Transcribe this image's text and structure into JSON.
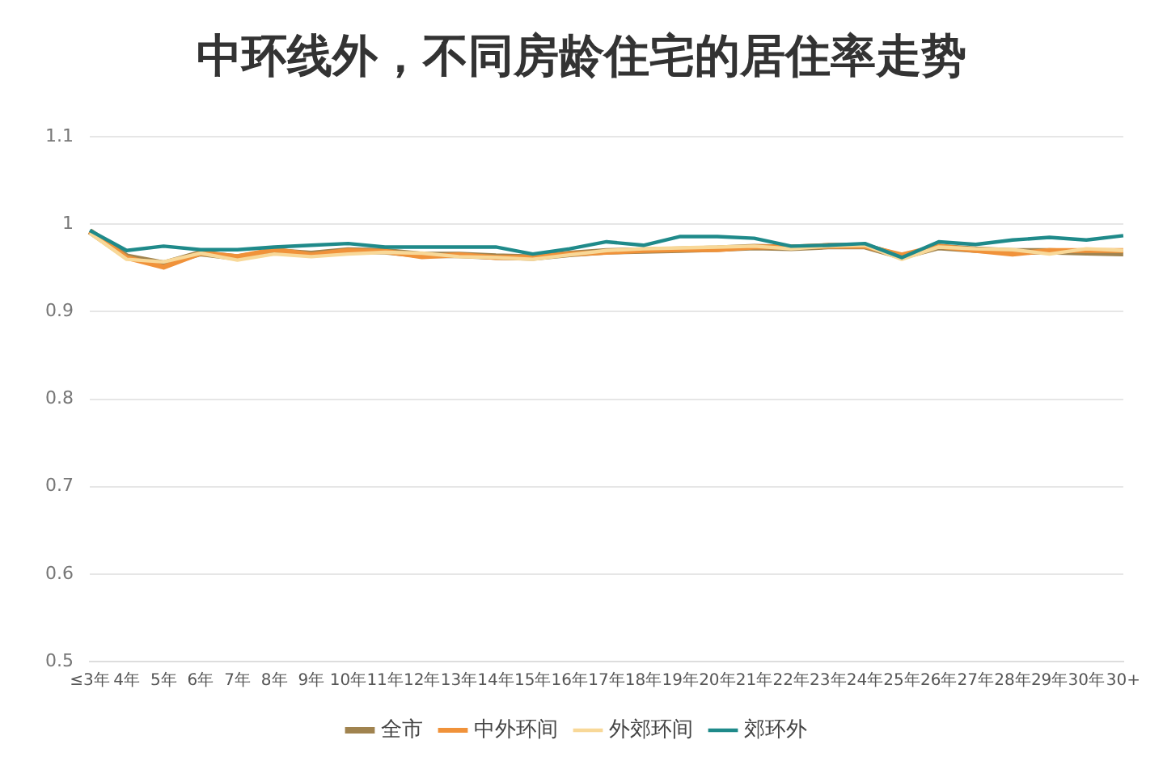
{
  "chart_data": {
    "type": "line",
    "title": "中环线外，不同房龄住宅的居住率走势",
    "categories": [
      "≤3年",
      "4年",
      "5年",
      "6年",
      "7年",
      "8年",
      "9年",
      "10年",
      "11年",
      "12年",
      "13年",
      "14年",
      "15年",
      "16年",
      "17年",
      "18年",
      "19年",
      "20年",
      "21年",
      "22年",
      "23年",
      "24年",
      "25年",
      "26年",
      "27年",
      "28年",
      "29年",
      "30年",
      "30+"
    ],
    "series": [
      {
        "name": "全市",
        "color": "#a0834f",
        "values": [
          0.992,
          0.963,
          0.955,
          0.967,
          0.962,
          0.969,
          0.966,
          0.97,
          0.969,
          0.965,
          0.965,
          0.963,
          0.962,
          0.966,
          0.969,
          0.97,
          0.971,
          0.972,
          0.974,
          0.973,
          0.975,
          0.975,
          0.963,
          0.974,
          0.971,
          0.969,
          0.969,
          0.968,
          0.967
        ]
      },
      {
        "name": "中外环间",
        "color": "#f0923a",
        "values": [
          0.992,
          0.962,
          0.951,
          0.967,
          0.963,
          0.971,
          0.965,
          0.97,
          0.969,
          0.963,
          0.965,
          0.962,
          0.962,
          0.966,
          0.968,
          0.97,
          0.971,
          0.971,
          0.974,
          0.974,
          0.975,
          0.975,
          0.965,
          0.975,
          0.97,
          0.966,
          0.97,
          0.97,
          0.97
        ]
      },
      {
        "name": "外郊环间",
        "color": "#f8d898",
        "values": [
          0.99,
          0.96,
          0.957,
          0.967,
          0.959,
          0.966,
          0.963,
          0.966,
          0.968,
          0.967,
          0.963,
          0.962,
          0.96,
          0.965,
          0.97,
          0.972,
          0.973,
          0.974,
          0.975,
          0.972,
          0.975,
          0.976,
          0.96,
          0.974,
          0.972,
          0.971,
          0.966,
          0.972,
          0.97
        ]
      },
      {
        "name": "郊环外",
        "color": "#1f8a8a",
        "values": [
          0.993,
          0.97,
          0.975,
          0.971,
          0.971,
          0.974,
          0.976,
          0.978,
          0.974,
          0.974,
          0.974,
          0.974,
          0.966,
          0.972,
          0.98,
          0.976,
          0.986,
          0.986,
          0.984,
          0.975,
          0.976,
          0.978,
          0.962,
          0.98,
          0.977,
          0.982,
          0.985,
          0.982,
          0.987
        ]
      }
    ],
    "ylim": [
      0.5,
      1.1
    ],
    "yticks": [
      0.5,
      0.6,
      0.7,
      0.8,
      0.9,
      1,
      1.1
    ],
    "grid": "y",
    "legend": "bottom",
    "marker": "none",
    "line_style": "solid"
  }
}
